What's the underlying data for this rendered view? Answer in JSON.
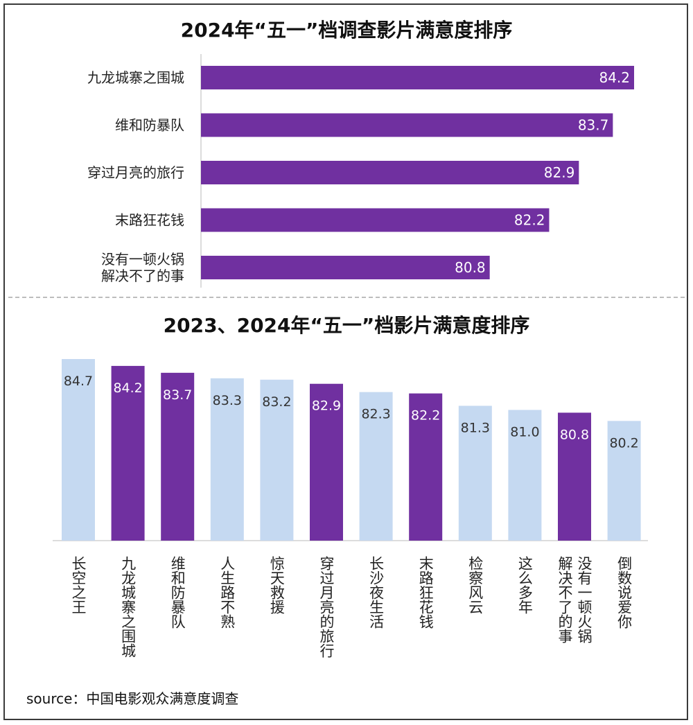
{
  "titles": {
    "chart1": "2024年“五一”档调查影片满意度排序",
    "chart2": "2023、2024年“五一”档影片满意度排序"
  },
  "source": "source：中国电影观众满意度调查",
  "colors": {
    "purple": "#7030a0",
    "light_blue": "#c5d9f1",
    "axis": "#d0d0d0"
  },
  "chart_data": [
    {
      "type": "bar",
      "orientation": "horizontal",
      "title": "2024年“五一”档调查影片满意度排序",
      "categories": [
        [
          "九龙城寨之围城"
        ],
        [
          "维和防暴队"
        ],
        [
          "穿过月亮的旅行"
        ],
        [
          "末路狂花钱"
        ],
        [
          "没有一顿火锅",
          "解决不了的事"
        ]
      ],
      "values": [
        84.2,
        83.7,
        82.9,
        82.2,
        80.8
      ],
      "xlim": [
        74,
        85
      ]
    },
    {
      "type": "bar",
      "orientation": "vertical",
      "title": "2023、2024年“五一”档影片满意度排序",
      "categories": [
        [
          "长空之王"
        ],
        [
          "九龙城寨之围城"
        ],
        [
          "维和防暴队"
        ],
        [
          "人生路不熟"
        ],
        [
          "惊天救援"
        ],
        [
          "穿过月亮的旅行"
        ],
        [
          "长沙夜生活"
        ],
        [
          "末路狂花钱"
        ],
        [
          "检察风云"
        ],
        [
          "这么多年"
        ],
        [
          "没有一顿火锅",
          "解决不了的事"
        ],
        [
          "倒数说爱你"
        ]
      ],
      "values": [
        84.7,
        84.2,
        83.7,
        83.3,
        83.2,
        82.9,
        82.3,
        82.2,
        81.3,
        81.0,
        80.8,
        80.2
      ],
      "value_labels": [
        "84.7",
        "84.2",
        "83.7",
        "83.3",
        "83.2",
        "82.9",
        "82.3",
        "82.2",
        "81.3",
        "81.0",
        "80.8",
        "80.2"
      ],
      "highlight_2024": [
        false,
        true,
        true,
        false,
        false,
        true,
        false,
        true,
        false,
        false,
        true,
        false
      ],
      "ylim": [
        71.5,
        85
      ]
    }
  ]
}
